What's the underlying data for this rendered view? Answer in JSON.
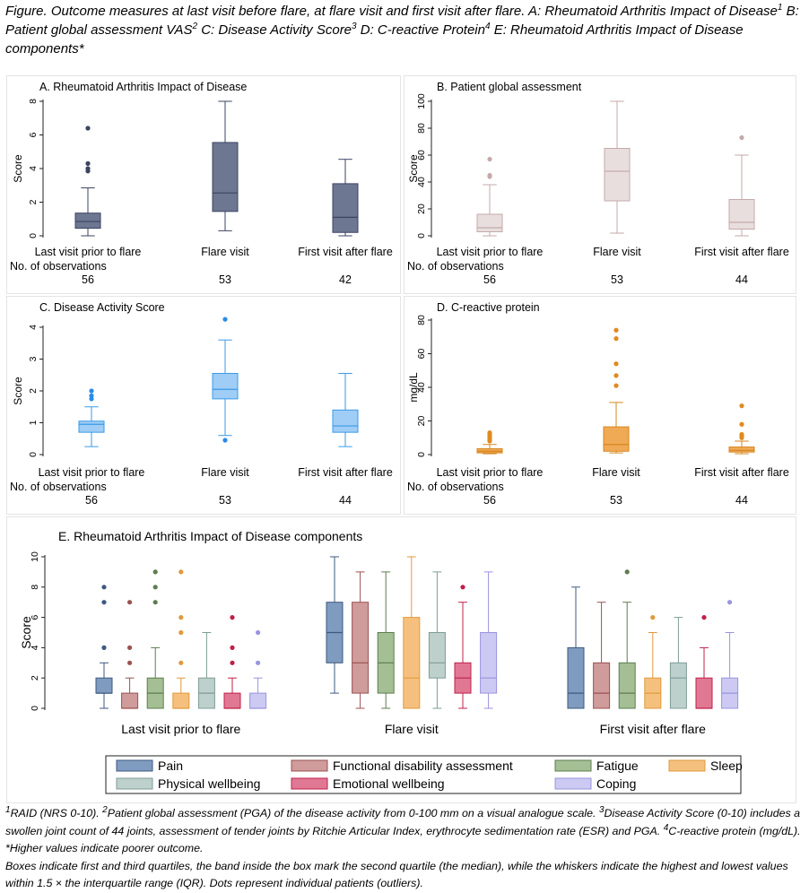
{
  "figure": {
    "caption_parts": [
      {
        "t": "Figure. Outcome measures at last visit before flare, at flare visit and first visit after flare. A: Rheumatoid Arthritis Impact of Disease"
      },
      {
        "sup": "1"
      },
      {
        "t": " B: Patient global assessment VAS"
      },
      {
        "sup": "2"
      },
      {
        "t": " C: Disease Activity Score"
      },
      {
        "sup": "3"
      },
      {
        "t": " D: C-reactive Protein"
      },
      {
        "sup": "4"
      },
      {
        "t": " E: Rheumatoid Arthritis Impact of Disease components*"
      }
    ],
    "footnote_parts": [
      {
        "sup": "1"
      },
      {
        "t": "RAID (NRS 0-10). "
      },
      {
        "sup": "2"
      },
      {
        "t": "Patient global assessment (PGA) of the disease activity from 0-100 mm on a visual analogue scale. "
      },
      {
        "sup": "3"
      },
      {
        "t": "Disease Activity Score (0-10) includes a swollen joint count of 44 joints, assessment of tender joints by Ritchie Articular Index, erythrocyte sedimentation rate (ESR) and PGA. "
      },
      {
        "sup": "4"
      },
      {
        "t": "C-reactive protein (mg/dL). *Higher values indicate poorer outcome."
      },
      {
        "br": true
      },
      {
        "t": "Boxes indicate first and third quartiles, the band inside the box mark the second quartile (the median), while the whiskers indicate the highest and lowest values within 1.5 × the interquartile range (IQR). Dots represent individual patients (outliers)."
      }
    ]
  },
  "chart_data": [
    {
      "id": "A",
      "type": "box",
      "title": "A. Rheumatoid Arthritis Impact of Disease",
      "ylabel": "Score",
      "ylim": [
        0,
        8
      ],
      "yticks": [
        0,
        2,
        4,
        6,
        8
      ],
      "categories": [
        "Last visit prior to flare",
        "Flare visit",
        "First visit after flare"
      ],
      "obs_label": "No. of observations",
      "n": [
        56,
        53,
        42
      ],
      "color": "#6e7791",
      "stroke": "#3b4560",
      "boxes": [
        {
          "min": 0.0,
          "q1": 0.45,
          "med": 0.85,
          "q3": 1.35,
          "max": 2.85,
          "outliers": [
            3.85,
            4.0,
            4.3,
            6.4
          ]
        },
        {
          "min": 0.3,
          "q1": 1.45,
          "med": 2.55,
          "q3": 5.55,
          "max": 8.0,
          "outliers": []
        },
        {
          "min": 0.0,
          "q1": 0.2,
          "med": 1.1,
          "q3": 3.1,
          "max": 4.55,
          "outliers": []
        }
      ]
    },
    {
      "id": "B",
      "type": "box",
      "title": "B. Patient global assessment",
      "ylabel": "Score",
      "ylim": [
        0,
        100
      ],
      "yticks": [
        0,
        20,
        40,
        60,
        80,
        100
      ],
      "categories": [
        "Last visit prior to flare",
        "Flare visit",
        "First visit after flare"
      ],
      "obs_label": "No. of observations",
      "n": [
        56,
        53,
        44
      ],
      "color": "#e9dede",
      "stroke": "#c4aaaa",
      "boxes": [
        {
          "min": 0,
          "q1": 3,
          "med": 6,
          "q3": 16,
          "max": 38,
          "outliers": [
            44,
            45,
            57
          ]
        },
        {
          "min": 2,
          "q1": 26,
          "med": 48,
          "q3": 65,
          "max": 100,
          "outliers": []
        },
        {
          "min": 0,
          "q1": 5,
          "med": 10,
          "q3": 27,
          "max": 60,
          "outliers": [
            73
          ]
        }
      ]
    },
    {
      "id": "C",
      "type": "box",
      "title": "C. Disease Activity Score",
      "ylabel": "Score",
      "ylim": [
        0,
        4
      ],
      "yticks": [
        0,
        1,
        2,
        3,
        4
      ],
      "categories": [
        "Last visit prior to flare",
        "Flare visit",
        "First visit after flare"
      ],
      "obs_label": "No. of observations",
      "n": [
        56,
        53,
        44
      ],
      "color": "#9fcdf5",
      "stroke": "#3a9ae8",
      "outlier_color": "#2a8be8",
      "boxes": [
        {
          "min": 0.25,
          "q1": 0.7,
          "med": 0.95,
          "q3": 1.05,
          "max": 1.5,
          "outliers": [
            1.75,
            1.85,
            2.0
          ]
        },
        {
          "min": 0.6,
          "q1": 1.75,
          "med": 2.05,
          "q3": 2.55,
          "max": 3.6,
          "outliers": [
            0.45,
            4.25
          ]
        },
        {
          "min": 0.25,
          "q1": 0.7,
          "med": 0.9,
          "q3": 1.4,
          "max": 2.55,
          "outliers": []
        }
      ]
    },
    {
      "id": "D",
      "type": "box",
      "title": "D. C-reactive protein",
      "ylabel": "mg/dL",
      "ylim": [
        0,
        80
      ],
      "yticks": [
        0,
        20,
        40,
        60,
        80
      ],
      "categories": [
        "Last visit prior to flare",
        "Flare visit",
        "First visit after flare"
      ],
      "obs_label": "No. of observations",
      "n": [
        56,
        53,
        44
      ],
      "color": "#f0aa55",
      "stroke": "#d6861f",
      "outlier_color": "#e08a1e",
      "boxes": [
        {
          "min": 0.5,
          "q1": 1,
          "med": 2,
          "q3": 3.5,
          "max": 6,
          "outliers": [
            8,
            9,
            10,
            11,
            12,
            13
          ]
        },
        {
          "min": 1,
          "q1": 2,
          "med": 6,
          "q3": 16.5,
          "max": 31,
          "outliers": [
            41,
            47,
            54,
            69,
            74
          ]
        },
        {
          "min": 0.5,
          "q1": 1.5,
          "med": 2.5,
          "q3": 4.5,
          "max": 8,
          "outliers": [
            10,
            11,
            12,
            18,
            29
          ]
        }
      ]
    },
    {
      "id": "E",
      "type": "box",
      "title": "E. Rheumatoid Arthritis Impact of Disease components",
      "ylabel": "Score",
      "ylim": [
        0,
        10
      ],
      "yticks": [
        0,
        2,
        4,
        6,
        8,
        10
      ],
      "categories": [
        "Last visit prior to flare",
        "Flare visit",
        "First visit after flare"
      ],
      "series": [
        {
          "name": "Pain",
          "color": "#7f9bbf",
          "stroke": "#3d5a80",
          "boxes": [
            {
              "min": 0,
              "q1": 1,
              "med": 1,
              "q3": 2,
              "max": 3,
              "outliers": [
                4,
                7,
                8
              ]
            },
            {
              "min": 1,
              "q1": 3,
              "med": 5,
              "q3": 7,
              "max": 10,
              "outliers": []
            },
            {
              "min": 0,
              "q1": 0,
              "med": 1,
              "q3": 4,
              "max": 8,
              "outliers": []
            }
          ]
        },
        {
          "name": "Functional disability assessment",
          "color": "#cf9b9b",
          "stroke": "#9a5252",
          "boxes": [
            {
              "min": 0,
              "q1": 0,
              "med": 0,
              "q3": 1,
              "max": 2,
              "outliers": [
                3,
                4,
                7
              ]
            },
            {
              "min": 0,
              "q1": 1,
              "med": 3,
              "q3": 7,
              "max": 9,
              "outliers": []
            },
            {
              "min": 0,
              "q1": 0,
              "med": 1,
              "q3": 3,
              "max": 7,
              "outliers": []
            }
          ]
        },
        {
          "name": "Fatigue",
          "color": "#a3bf93",
          "stroke": "#5e7d4f",
          "boxes": [
            {
              "min": 0,
              "q1": 0,
              "med": 1,
              "q3": 2,
              "max": 4,
              "outliers": [
                7,
                8,
                9
              ]
            },
            {
              "min": 0,
              "q1": 1,
              "med": 3,
              "q3": 5,
              "max": 9,
              "outliers": []
            },
            {
              "min": 0,
              "q1": 0,
              "med": 1,
              "q3": 3,
              "max": 7,
              "outliers": [
                9
              ]
            }
          ]
        },
        {
          "name": "Sleep",
          "color": "#f5c07e",
          "stroke": "#e09a3e",
          "boxes": [
            {
              "min": 0,
              "q1": 0,
              "med": 0,
              "q3": 1,
              "max": 2,
              "outliers": [
                3,
                5,
                6,
                9
              ]
            },
            {
              "min": 0,
              "q1": 0,
              "med": 2,
              "q3": 6,
              "max": 10,
              "outliers": []
            },
            {
              "min": 0,
              "q1": 0,
              "med": 1,
              "q3": 2,
              "max": 5,
              "outliers": [
                6
              ]
            }
          ]
        },
        {
          "name": "Physical wellbeing",
          "color": "#bdd0cc",
          "stroke": "#7f9c96",
          "boxes": [
            {
              "min": 0,
              "q1": 0,
              "med": 1,
              "q3": 2,
              "max": 5,
              "outliers": []
            },
            {
              "min": 0,
              "q1": 2,
              "med": 3,
              "q3": 5,
              "max": 9,
              "outliers": []
            },
            {
              "min": 0,
              "q1": 0,
              "med": 2,
              "q3": 3,
              "max": 6,
              "outliers": []
            }
          ]
        },
        {
          "name": "Emotional wellbeing",
          "color": "#e07894",
          "stroke": "#c0204a",
          "boxes": [
            {
              "min": 0,
              "q1": 0,
              "med": 0,
              "q3": 1,
              "max": 2,
              "outliers": [
                3,
                4,
                6
              ]
            },
            {
              "min": 0,
              "q1": 1,
              "med": 2,
              "q3": 3,
              "max": 7,
              "outliers": [
                8
              ]
            },
            {
              "min": 0,
              "q1": 0,
              "med": 0,
              "q3": 2,
              "max": 4,
              "outliers": [
                6
              ]
            }
          ]
        },
        {
          "name": "Coping",
          "color": "#cccaf2",
          "stroke": "#9994de",
          "boxes": [
            {
              "min": 0,
              "q1": 0,
              "med": 0,
              "q3": 1,
              "max": 2,
              "outliers": [
                3,
                5
              ]
            },
            {
              "min": 0,
              "q1": 1,
              "med": 2,
              "q3": 5,
              "max": 9,
              "outliers": []
            },
            {
              "min": 0,
              "q1": 0,
              "med": 1,
              "q3": 2,
              "max": 5,
              "outliers": [
                7
              ]
            }
          ]
        }
      ],
      "legend_rows": [
        [
          "Pain",
          "Functional disability assessment",
          "Fatigue",
          "Sleep"
        ],
        [
          "Physical wellbeing",
          "Emotional wellbeing",
          "Coping"
        ]
      ],
      "legend_position": "bottom"
    }
  ]
}
